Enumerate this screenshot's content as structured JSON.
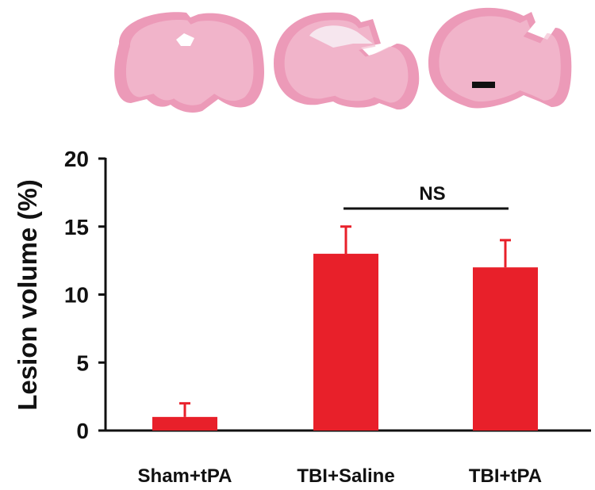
{
  "images": {
    "panels": [
      "Sham+tPA",
      "TBI+Saline",
      "TBI+tPA"
    ],
    "colors": {
      "tissue": "#ec9ab8",
      "tissue_light": "#f4bfd2",
      "scale_bar": "#111111"
    }
  },
  "chart_data": {
    "type": "bar",
    "title": "",
    "xlabel": "",
    "ylabel": "Lesion volume (%)",
    "categories": [
      "Sham+tPA",
      "TBI+Saline",
      "TBI+tPA"
    ],
    "values": [
      1,
      13,
      12
    ],
    "errors": [
      1,
      2,
      2
    ],
    "ylim": [
      0,
      20
    ],
    "yticks": [
      0,
      5,
      10,
      15,
      20
    ],
    "grid": false,
    "bar_color": "#e8202a",
    "annotations": [
      {
        "text": "NS",
        "from": "TBI+Saline",
        "to": "TBI+tPA"
      }
    ]
  }
}
